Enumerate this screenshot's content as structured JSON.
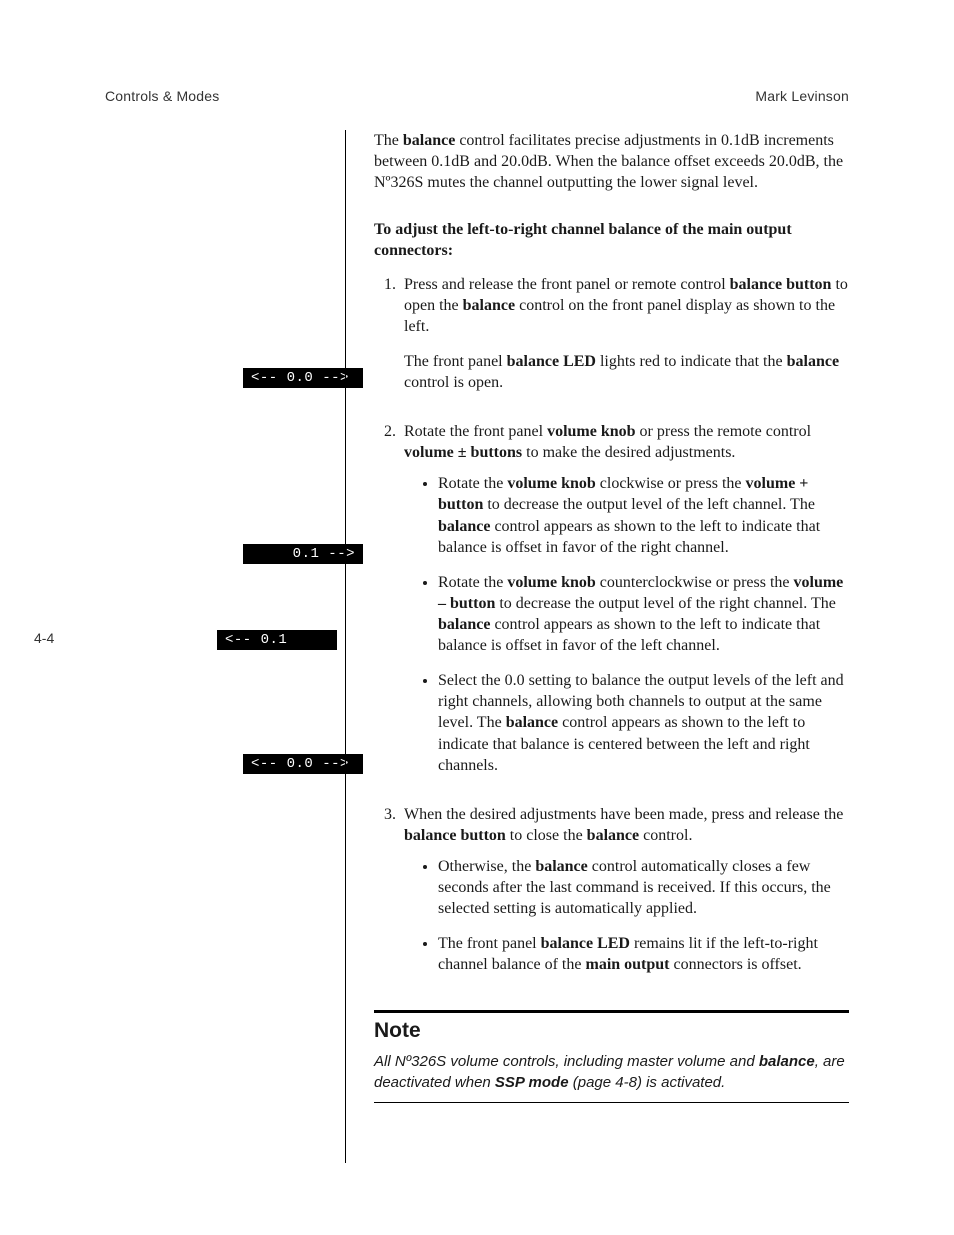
{
  "colors": {
    "page_bg": "#ffffff",
    "text": "#1a1a1a",
    "lcd_bg": "#000000",
    "lcd_fg": "#ffffff",
    "rule": "#000000"
  },
  "typography": {
    "body_font": "Times New Roman / serif",
    "body_size_pt": 12,
    "sans_font": "Optima / sans-serif",
    "mono_font": "Courier New",
    "line_height": 1.32
  },
  "header": {
    "left": "Controls & Modes",
    "right": "Mark Levinson"
  },
  "page_number": "4-4",
  "lcd_displays": {
    "d1": "<-- 0.0 -->",
    "d2": "    0.1 -->",
    "d3": "<-- 0.1    ",
    "d4": "<-- 0.0 -->"
  },
  "intro_html": "The <b>balance</b> control facilitates precise adjustments in 0.1dB increments between 0.1dB and 20.0dB. When the balance offset exceeds 20.0dB, the Nº326S mutes the channel outputting the lower signal level.",
  "instruction_heading": "To adjust the left-to-right channel balance of the main output connectors:",
  "steps": [
    {
      "body_html": "Press and release the front panel or remote control <b>balance button</b> to open the <b>balance</b> control on the front panel display as shown to the left.",
      "after_html": "The front panel <b>balance LED</b> lights red to indicate that the <b>balance</b> control is open.",
      "bullets": []
    },
    {
      "body_html": "Rotate the front panel <b>volume knob</b> or press the remote control <b>volume ± buttons</b> to make the desired adjustments.",
      "after_html": "",
      "bullets": [
        "Rotate the <b>volume knob</b> clockwise or press the <b>volume + button</b> to decrease the output level of the left channel. The <b>balance</b> control appears as shown to the left to indicate that balance is offset in favor of the right channel.",
        "Rotate the <b>volume knob</b> counterclockwise or press the <b>volume – button</b> to decrease the output level of the right channel. The <b>balance</b> control appears as shown to the left to indicate that balance is offset in favor of the left channel.",
        "Select the 0.0 setting to balance the output levels of the left and right channels, allowing both channels to output at the same level. The <b>balance</b> control appears as shown to the left to indicate that balance is centered between the left and right channels."
      ]
    },
    {
      "body_html": "When the desired adjustments have been made, press and release the <b>balance button</b> to close the <b>balance</b> control.",
      "after_html": "",
      "bullets": [
        "Otherwise, the <b>balance</b> control automatically closes a few seconds after the last command is received. If this occurs, the selected setting is automatically applied.",
        "The front panel <b>balance LED</b> remains lit if the left-to-right channel balance of the <b>main output</b> connectors is offset."
      ]
    }
  ],
  "note": {
    "title": "Note",
    "body_html": "All Nº326S volume controls, including master volume and <b>balance</b>, are deactivated when <b>SSP mode</b> (page 4-8) is activated."
  }
}
